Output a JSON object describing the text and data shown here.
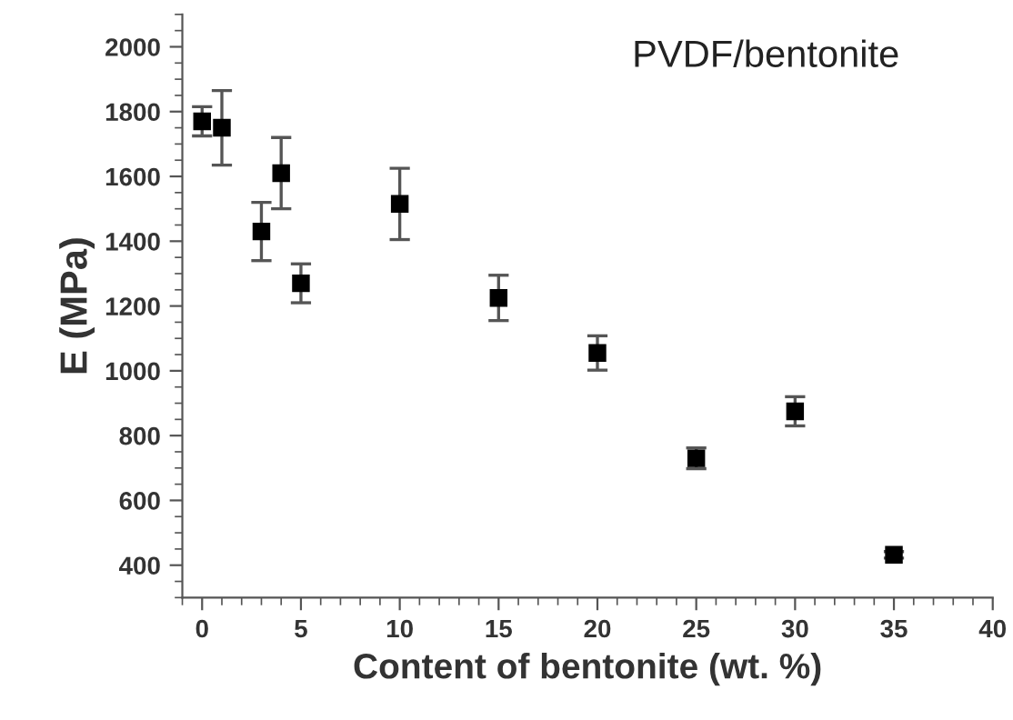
{
  "chart_data": {
    "type": "scatter",
    "title": "PVDF/bentonite",
    "xlabel": "Content of bentonite (wt. %)",
    "ylabel": "E (MPa)",
    "x": [
      0,
      1,
      3,
      4,
      5,
      10,
      15,
      20,
      25,
      30,
      35
    ],
    "series": [
      {
        "color": "#000000",
        "values": [
          1770,
          1750,
          1430,
          1610,
          1270,
          1515,
          1225,
          1055,
          730,
          875,
          432
        ],
        "errors": [
          45,
          115,
          90,
          110,
          60,
          110,
          70,
          53,
          32,
          45,
          10
        ]
      }
    ],
    "xlim": [
      -1,
      40
    ],
    "xticks": [
      0,
      5,
      10,
      15,
      20,
      25,
      30,
      35,
      40
    ],
    "ylim": [
      300,
      2100
    ],
    "yticks": [
      400,
      600,
      800,
      1000,
      1200,
      1400,
      1600,
      1800,
      2000
    ],
    "marker": "square",
    "grid": false,
    "legend": false
  }
}
